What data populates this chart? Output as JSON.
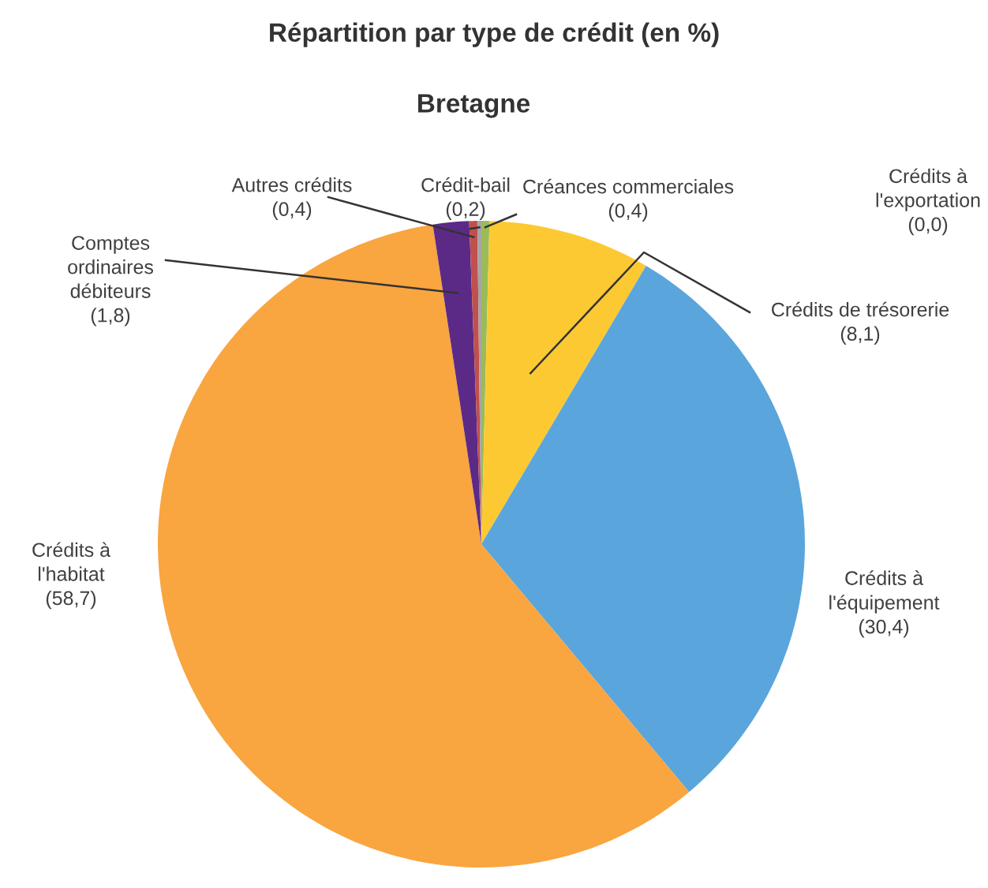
{
  "chart_data": {
    "type": "pie",
    "title": "Répartition par type de crédit (en %)",
    "subtitle": "Bretagne",
    "categories": [
      "Créances commerciales",
      "Crédits à\nl'exportation",
      "Crédits de trésorerie",
      "Crédits à\nl'équipement",
      "Crédits à\nl'habitat",
      "Comptes\nordinaires\ndébiteurs",
      "Autres crédits",
      "Crédit-bail"
    ],
    "values": [
      0.4,
      0.0,
      8.1,
      30.4,
      58.7,
      1.8,
      0.4,
      0.2
    ],
    "value_labels": [
      "(0,4)",
      "(0,0)",
      "(8,1)",
      "(30,4)",
      "(58,7)",
      "(1,8)",
      "(0,4)",
      "(0,2)"
    ],
    "colors": [
      "#9bbb59",
      "#4bacc6",
      "#fdc932",
      "#5aa5dc",
      "#f9a540",
      "#5b2a86",
      "#c0504d",
      "#a5a5a5"
    ]
  }
}
